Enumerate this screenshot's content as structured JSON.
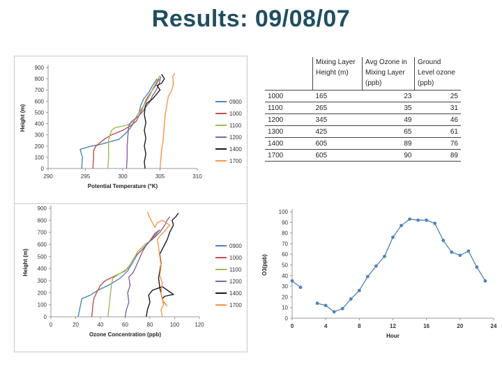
{
  "title": "Results: 09/08/07",
  "table": {
    "headers": [
      "",
      "Mixing Layer Height (m)",
      "Avg Ozone in Mixing Layer (ppb)",
      "Ground Level ozone (ppb)"
    ],
    "rows": [
      [
        "1000",
        "165",
        "23",
        "25"
      ],
      [
        "1100",
        "265",
        "35",
        "31"
      ],
      [
        "1200",
        "345",
        "49",
        "46"
      ],
      [
        "1300",
        "425",
        "65",
        "61"
      ],
      [
        "1400",
        "605",
        "89",
        "76"
      ],
      [
        "1700",
        "605",
        "90",
        "89"
      ]
    ]
  },
  "chart_data": [
    {
      "type": "line",
      "xlabel": "Potential Temperature (°K)",
      "ylabel": "Height (m)",
      "xlim": [
        290,
        310
      ],
      "ylim": [
        0,
        900
      ],
      "xticks": [
        290,
        295,
        300,
        305,
        310
      ],
      "yticks": [
        0,
        100,
        200,
        300,
        400,
        500,
        600,
        700,
        800,
        900
      ],
      "legend": "right",
      "series": [
        {
          "name": "0900",
          "color": "#4f81bd",
          "points": [
            [
              294.5,
              0
            ],
            [
              294.6,
              100
            ],
            [
              294.3,
              170
            ],
            [
              295.5,
              195
            ],
            [
              297,
              215
            ],
            [
              299.5,
              260
            ],
            [
              300.5,
              320
            ],
            [
              301,
              360
            ],
            [
              301.4,
              400
            ],
            [
              301.8,
              460
            ],
            [
              302.2,
              500
            ],
            [
              302.4,
              560
            ],
            [
              302.8,
              620
            ],
            [
              303.5,
              680
            ],
            [
              304,
              740
            ],
            [
              304.6,
              800
            ]
          ]
        },
        {
          "name": "1000",
          "color": "#c0504d",
          "points": [
            [
              296,
              0
            ],
            [
              296.1,
              100
            ],
            [
              296.1,
              160
            ],
            [
              296.4,
              200
            ],
            [
              297.5,
              260
            ],
            [
              298.5,
              300
            ],
            [
              300,
              340
            ],
            [
              301,
              380
            ],
            [
              301.8,
              420
            ],
            [
              302.4,
              500
            ],
            [
              302.8,
              560
            ],
            [
              303.2,
              620
            ],
            [
              303.8,
              680
            ],
            [
              304.4,
              740
            ],
            [
              304.9,
              800
            ]
          ]
        },
        {
          "name": "1100",
          "color": "#9bbb59",
          "points": [
            [
              298,
              0
            ],
            [
              298.1,
              100
            ],
            [
              298.1,
              250
            ],
            [
              298.3,
              300
            ],
            [
              298.5,
              340
            ],
            [
              299,
              365
            ],
            [
              300.5,
              385
            ],
            [
              301.5,
              420
            ],
            [
              302,
              480
            ],
            [
              302.6,
              540
            ],
            [
              303.2,
              600
            ],
            [
              303.7,
              660
            ],
            [
              304.1,
              720
            ],
            [
              304.6,
              780
            ],
            [
              305,
              830
            ]
          ]
        },
        {
          "name": "1200",
          "color": "#8064a2",
          "points": [
            [
              300.5,
              0
            ],
            [
              300.6,
              100
            ],
            [
              300.6,
              200
            ],
            [
              300.7,
              300
            ],
            [
              300.8,
              380
            ],
            [
              301.2,
              420
            ],
            [
              302,
              460
            ],
            [
              302.6,
              500
            ],
            [
              303,
              540
            ],
            [
              303.6,
              590
            ],
            [
              304,
              650
            ],
            [
              304.5,
              700
            ],
            [
              304.9,
              760
            ],
            [
              305.1,
              820
            ]
          ]
        },
        {
          "name": "1400",
          "color": "#1a1a1a",
          "points": [
            [
              303,
              0
            ],
            [
              302.9,
              60
            ],
            [
              303.1,
              130
            ],
            [
              302.9,
              200
            ],
            [
              303.1,
              270
            ],
            [
              302.9,
              340
            ],
            [
              303.1,
              410
            ],
            [
              302.9,
              480
            ],
            [
              303,
              550
            ],
            [
              303.2,
              580
            ],
            [
              304,
              620
            ],
            [
              304.5,
              660
            ],
            [
              305,
              700
            ],
            [
              304.6,
              740
            ],
            [
              305.2,
              760
            ],
            [
              305.6,
              800
            ],
            [
              305.2,
              840
            ]
          ]
        },
        {
          "name": "1700",
          "color": "#f79646",
          "points": [
            [
              305,
              0
            ],
            [
              305.1,
              80
            ],
            [
              305.2,
              160
            ],
            [
              305.4,
              240
            ],
            [
              305.5,
              320
            ],
            [
              305.6,
              400
            ],
            [
              305.7,
              480
            ],
            [
              305.9,
              560
            ],
            [
              306.1,
              640
            ],
            [
              306.6,
              700
            ],
            [
              306.8,
              760
            ],
            [
              306.7,
              820
            ],
            [
              307,
              850
            ]
          ]
        }
      ]
    },
    {
      "type": "line",
      "xlabel": "Ozone Concentration (ppb)",
      "ylabel": "Height (m)",
      "xlim": [
        0,
        120
      ],
      "ylim": [
        0,
        900
      ],
      "xticks": [
        0,
        20,
        40,
        60,
        80,
        100,
        120
      ],
      "yticks": [
        0,
        100,
        200,
        300,
        400,
        500,
        600,
        700,
        800,
        900
      ],
      "legend": "right",
      "series": [
        {
          "name": "0900",
          "color": "#4f81bd",
          "points": [
            [
              22,
              0
            ],
            [
              23,
              50
            ],
            [
              24,
              100
            ],
            [
              25,
              150
            ],
            [
              32,
              180
            ],
            [
              38,
              220
            ],
            [
              48,
              270
            ],
            [
              56,
              320
            ],
            [
              62,
              380
            ],
            [
              66,
              450
            ],
            [
              70,
              520
            ],
            [
              76,
              580
            ],
            [
              82,
              650
            ],
            [
              86,
              700
            ],
            [
              88,
              720
            ]
          ]
        },
        {
          "name": "1000",
          "color": "#c0504d",
          "points": [
            [
              33,
              0
            ],
            [
              34,
              100
            ],
            [
              35,
              160
            ],
            [
              37,
              200
            ],
            [
              40,
              260
            ],
            [
              44,
              300
            ],
            [
              52,
              340
            ],
            [
              60,
              380
            ],
            [
              64,
              430
            ],
            [
              68,
              500
            ],
            [
              74,
              560
            ],
            [
              80,
              630
            ],
            [
              84,
              690
            ],
            [
              88,
              720
            ]
          ]
        },
        {
          "name": "1100",
          "color": "#9bbb59",
          "points": [
            [
              46,
              0
            ],
            [
              47,
              80
            ],
            [
              48,
              180
            ],
            [
              49,
              270
            ],
            [
              50,
              320
            ],
            [
              56,
              360
            ],
            [
              62,
              400
            ],
            [
              66,
              460
            ],
            [
              70,
              540
            ],
            [
              76,
              600
            ],
            [
              82,
              640
            ],
            [
              86,
              690
            ]
          ]
        },
        {
          "name": "1200",
          "color": "#8064a2",
          "points": [
            [
              60,
              0
            ],
            [
              61,
              60
            ],
            [
              63,
              120
            ],
            [
              62,
              200
            ],
            [
              64,
              260
            ],
            [
              63,
              330
            ],
            [
              66,
              360
            ],
            [
              68,
              400
            ],
            [
              71,
              470
            ],
            [
              74,
              540
            ],
            [
              78,
              610
            ],
            [
              84,
              660
            ],
            [
              88,
              700
            ],
            [
              92,
              760
            ],
            [
              94,
              800
            ],
            [
              96,
              830
            ]
          ]
        },
        {
          "name": "1400",
          "color": "#1a1a1a",
          "points": [
            [
              77,
              0
            ],
            [
              78,
              60
            ],
            [
              80,
              120
            ],
            [
              79,
              180
            ],
            [
              82,
              220
            ],
            [
              90,
              250
            ],
            [
              99,
              185
            ],
            [
              92,
              170
            ],
            [
              90,
              150
            ],
            [
              88,
              240
            ],
            [
              87,
              320
            ],
            [
              88,
              380
            ],
            [
              89,
              440
            ],
            [
              88,
              520
            ],
            [
              91,
              580
            ],
            [
              94,
              640
            ],
            [
              96,
              700
            ],
            [
              99,
              760
            ],
            [
              98,
              800
            ],
            [
              101,
              830
            ],
            [
              103,
              860
            ]
          ]
        },
        {
          "name": "1700",
          "color": "#f79646",
          "points": [
            [
              90,
              0
            ],
            [
              89,
              60
            ],
            [
              91,
              100
            ],
            [
              90,
              150
            ],
            [
              91,
              120
            ],
            [
              94,
              90
            ],
            [
              90,
              140
            ],
            [
              89,
              200
            ],
            [
              90,
              280
            ],
            [
              88,
              340
            ],
            [
              89,
              420
            ],
            [
              88,
              500
            ],
            [
              87,
              580
            ],
            [
              86,
              640
            ],
            [
              88,
              670
            ],
            [
              91,
              700
            ],
            [
              96,
              760
            ],
            [
              90,
              800
            ],
            [
              86,
              780
            ],
            [
              84,
              740
            ],
            [
              82,
              780
            ],
            [
              80,
              820
            ],
            [
              78,
              870
            ]
          ]
        }
      ]
    },
    {
      "type": "scatter",
      "xlabel": "Hour",
      "ylabel": "O3(ppb)",
      "xlim": [
        0,
        24
      ],
      "ylim": [
        0,
        100
      ],
      "xticks": [
        0,
        4,
        8,
        12,
        16,
        20,
        24
      ],
      "yticks": [
        0,
        10,
        20,
        30,
        40,
        50,
        60,
        70,
        80,
        90,
        100
      ],
      "series": [
        {
          "color": "#4f81bd",
          "points": [
            [
              0,
              35
            ],
            [
              1,
              29
            ]
          ]
        },
        {
          "color": "#4f81bd",
          "points": [
            [
              3,
              14
            ],
            [
              4,
              12
            ],
            [
              5,
              6
            ],
            [
              6,
              9
            ],
            [
              7,
              18
            ],
            [
              8,
              26
            ],
            [
              9,
              39
            ],
            [
              10,
              49
            ],
            [
              11,
              58
            ],
            [
              12,
              76
            ],
            [
              13,
              87
            ],
            [
              14,
              93
            ],
            [
              15,
              92
            ],
            [
              16,
              92
            ],
            [
              17,
              89
            ],
            [
              18,
              73
            ],
            [
              19,
              62
            ],
            [
              20,
              59
            ],
            [
              21,
              63
            ],
            [
              22,
              48
            ],
            [
              23,
              35
            ]
          ]
        }
      ]
    }
  ]
}
